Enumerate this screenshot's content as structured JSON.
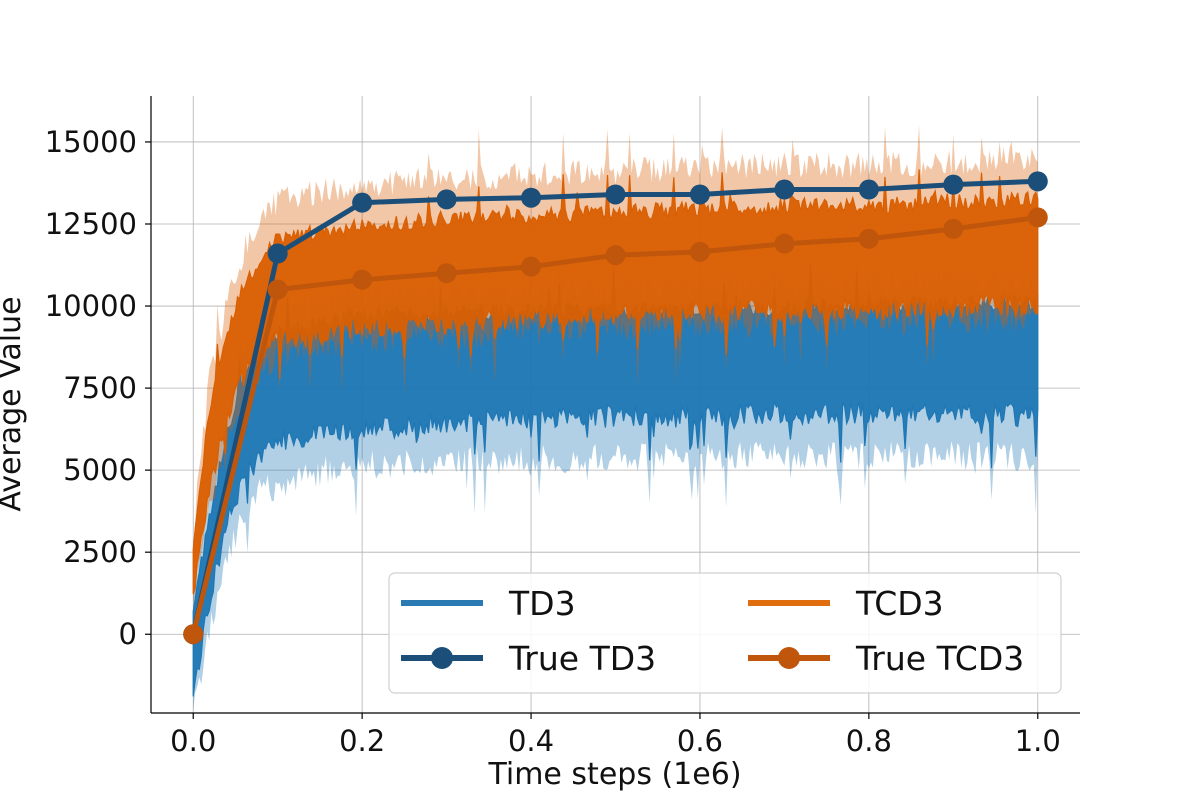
{
  "chart_data": {
    "type": "line",
    "title": "",
    "xlabel": "Time steps (1e6)",
    "ylabel": "Average Value",
    "xlim": [
      -0.05,
      1.05
    ],
    "ylim": [
      -2400,
      16400
    ],
    "grid": true,
    "x_ticks": [
      0.0,
      0.2,
      0.4,
      0.6,
      0.8,
      1.0
    ],
    "x_tick_labels": [
      "0.0",
      "0.2",
      "0.4",
      "0.6",
      "0.8",
      "1.0"
    ],
    "y_ticks": [
      0,
      2500,
      5000,
      7500,
      10000,
      12500,
      15000
    ],
    "y_tick_labels": [
      "0",
      "2500",
      "5000",
      "7500",
      "10000",
      "12500",
      "15000"
    ],
    "legend": {
      "position": "lower-right",
      "columns": 2
    },
    "series": [
      {
        "name": "TD3",
        "style": "band",
        "color": "#1f77b4",
        "x": [
          0.0,
          0.02,
          0.04,
          0.06,
          0.08,
          0.1,
          0.15,
          0.2,
          0.3,
          0.4,
          0.5,
          0.6,
          0.7,
          0.8,
          0.9,
          1.0
        ],
        "lower": [
          -1500,
          1500,
          3800,
          5200,
          5800,
          6200,
          6400,
          6600,
          6800,
          6900,
          7000,
          7000,
          7100,
          7100,
          7100,
          7000
        ],
        "upper": [
          500,
          3500,
          5800,
          7600,
          8500,
          8900,
          9300,
          9500,
          9500,
          9600,
          9600,
          9700,
          9700,
          9800,
          9800,
          9900
        ],
        "band_lower": [
          -1800,
          600,
          2800,
          4200,
          4800,
          5000,
          5400,
          5600,
          5700,
          5800,
          5800,
          5900,
          5900,
          5900,
          5900,
          5800
        ],
        "band_upper": [
          900,
          4200,
          6400,
          8100,
          9000,
          9400,
          9700,
          9900,
          10000,
          10100,
          10100,
          10200,
          10200,
          10300,
          10300,
          10400
        ]
      },
      {
        "name": "TCD3",
        "style": "band",
        "color": "#d95f02",
        "x": [
          0.0,
          0.02,
          0.04,
          0.06,
          0.08,
          0.1,
          0.15,
          0.2,
          0.3,
          0.4,
          0.5,
          0.6,
          0.7,
          0.8,
          0.9,
          1.0
        ],
        "lower": [
          1600,
          5000,
          6800,
          8300,
          9000,
          9300,
          9500,
          9700,
          9800,
          10000,
          10100,
          10200,
          10200,
          10300,
          10300,
          10400
        ],
        "upper": [
          2200,
          6800,
          8800,
          10400,
          11200,
          11800,
          12000,
          12200,
          12400,
          12500,
          12600,
          12700,
          12800,
          12800,
          12900,
          13000
        ],
        "band_lower": [
          1300,
          4300,
          6200,
          7700,
          8600,
          8900,
          9200,
          9400,
          9500,
          9700,
          9800,
          9900,
          9900,
          10000,
          10000,
          10100
        ],
        "band_upper": [
          2600,
          7600,
          9600,
          11300,
          12200,
          12800,
          13100,
          13300,
          13500,
          13600,
          13700,
          13800,
          13900,
          13900,
          14000,
          14100
        ]
      },
      {
        "name": "True TD3",
        "style": "line-marker",
        "color": "#1b4f7a",
        "x": [
          0.0,
          0.1,
          0.2,
          0.3,
          0.4,
          0.5,
          0.6,
          0.7,
          0.8,
          0.9,
          1.0
        ],
        "values": [
          0,
          11600,
          13150,
          13250,
          13300,
          13400,
          13400,
          13550,
          13550,
          13700,
          13800
        ]
      },
      {
        "name": "True TCD3",
        "style": "line-marker",
        "color": "#c0560b",
        "x": [
          0.0,
          0.1,
          0.2,
          0.3,
          0.4,
          0.5,
          0.6,
          0.7,
          0.8,
          0.9,
          1.0
        ],
        "values": [
          0,
          10500,
          10800,
          11000,
          11200,
          11550,
          11650,
          11900,
          12050,
          12350,
          12700
        ]
      }
    ]
  }
}
